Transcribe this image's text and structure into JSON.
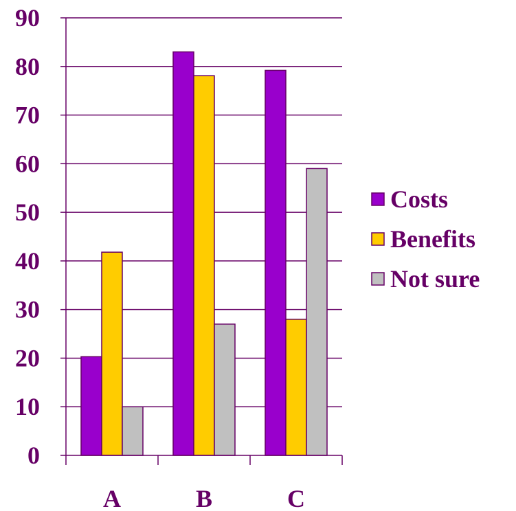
{
  "chart_data": {
    "type": "bar",
    "categories": [
      "A",
      "B",
      "C"
    ],
    "series": [
      {
        "name": "Costs",
        "values": [
          20.3,
          83,
          79.2
        ],
        "color": "#9900cc"
      },
      {
        "name": "Benefits",
        "values": [
          41.8,
          78.1,
          28
        ],
        "color": "#ffcc00"
      },
      {
        "name": "Not sure",
        "values": [
          10,
          27,
          59
        ],
        "color": "#c0c0c0"
      }
    ],
    "y_ticks": [
      "0",
      "10",
      "20",
      "30",
      "40",
      "50",
      "60",
      "70",
      "80",
      "90"
    ],
    "ylim": [
      0,
      90
    ],
    "grid": true,
    "legend_position": "right",
    "axis_color": "#660066",
    "text_color": "#660066"
  }
}
